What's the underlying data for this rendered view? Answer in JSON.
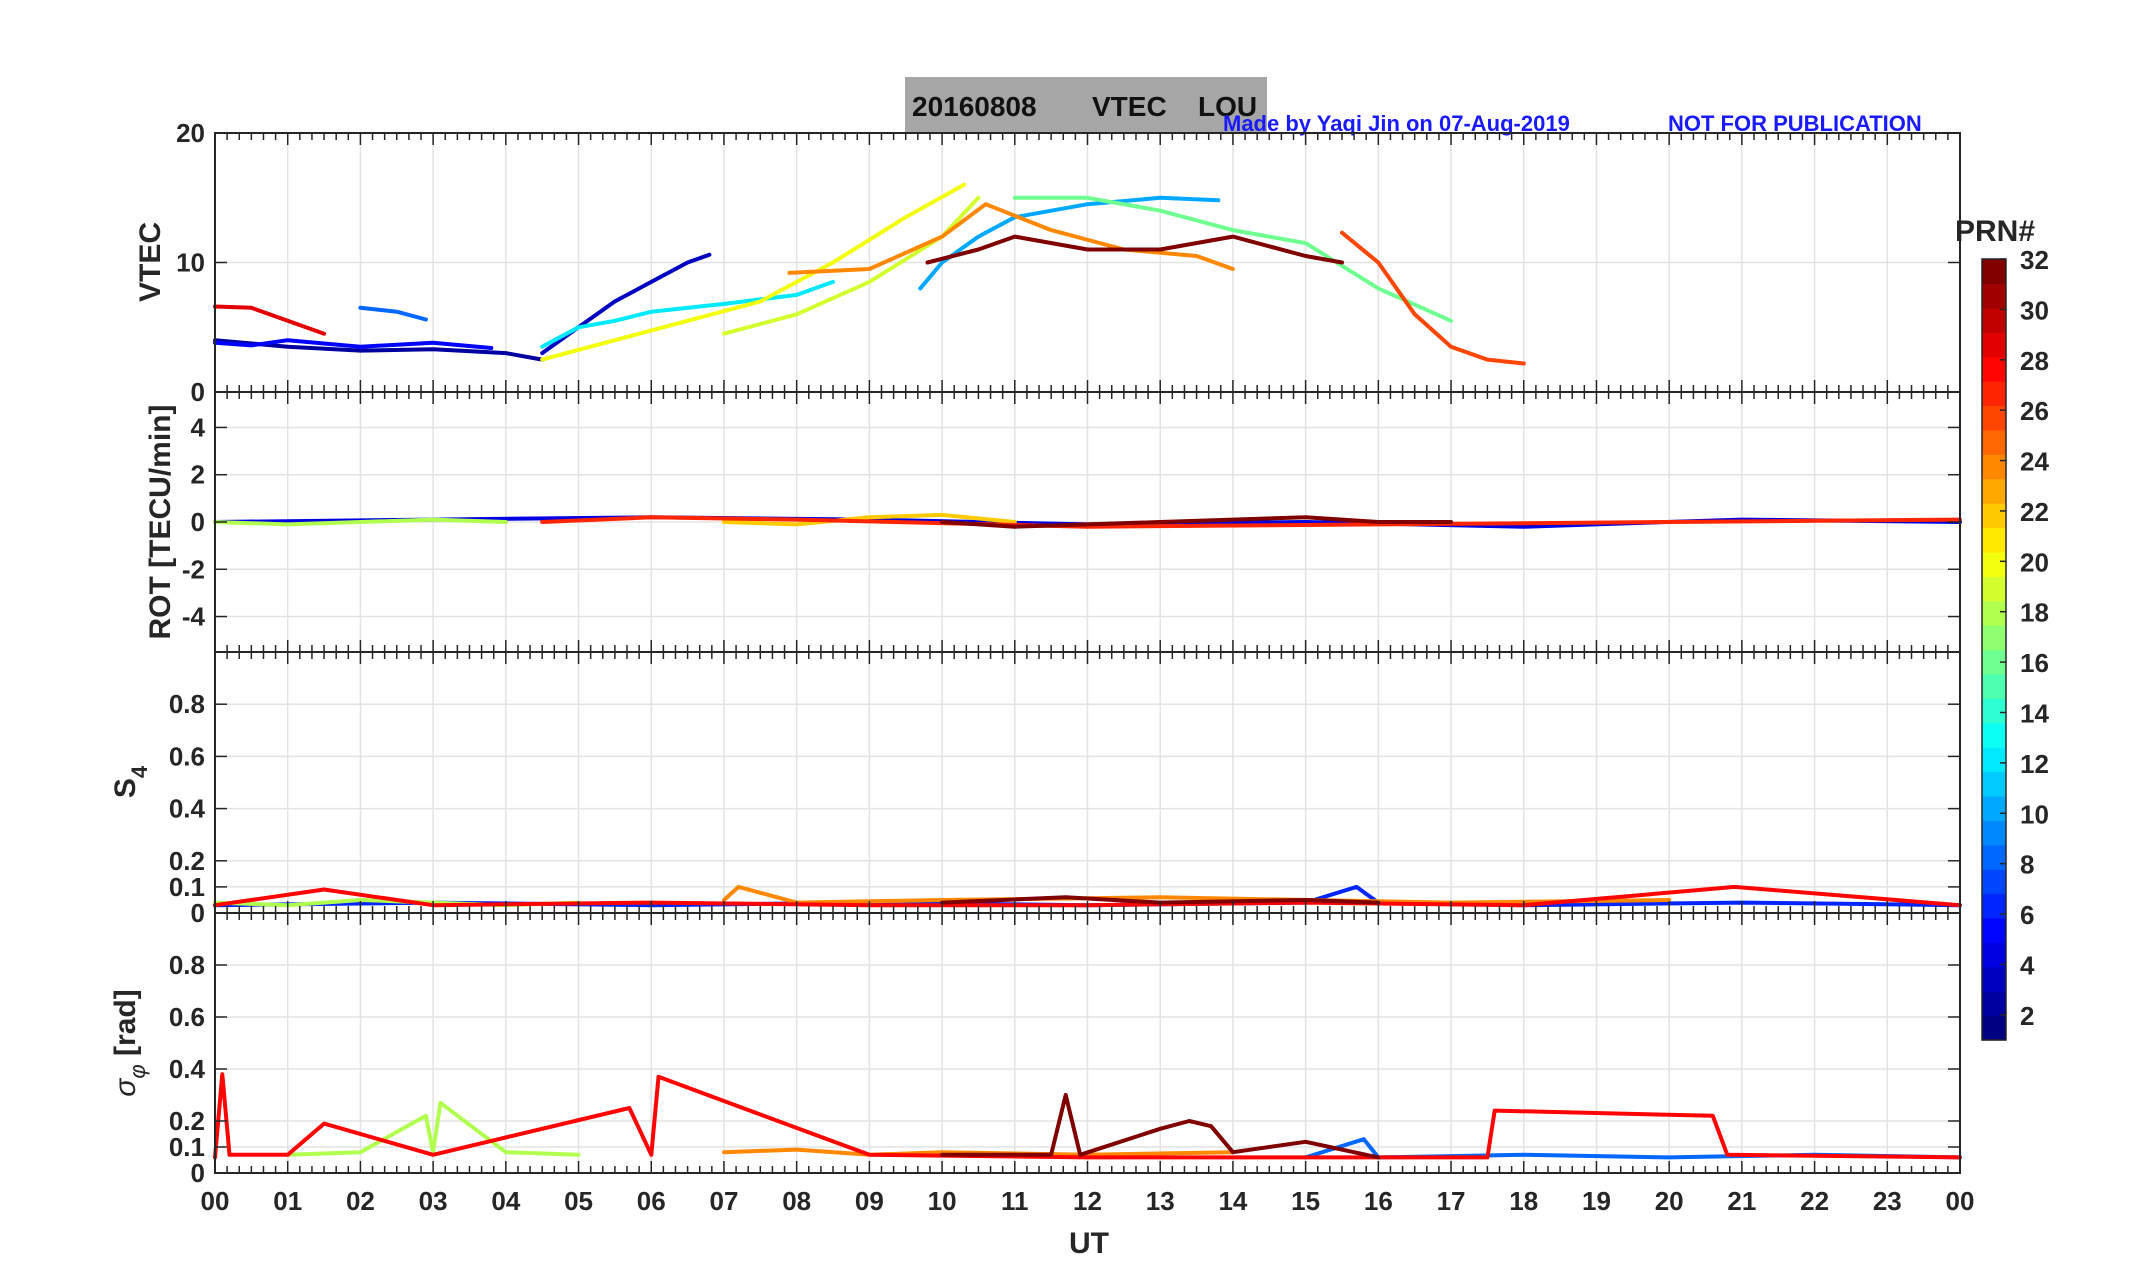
{
  "header": {
    "title_date": "20160808",
    "title_type": "VTEC",
    "title_station": "LOU",
    "credit": "Made by Yaqi Jin on 07-Aug-2019",
    "disclaimer": "NOT FOR PUBLICATION"
  },
  "colorbar": {
    "label": "PRN#",
    "range": [
      1,
      32
    ],
    "ticks": [
      "2",
      "4",
      "6",
      "8",
      "10",
      "12",
      "14",
      "16",
      "18",
      "20",
      "22",
      "24",
      "26",
      "28",
      "30",
      "32"
    ]
  },
  "chart_data": [
    {
      "id": "vtec",
      "type": "line",
      "ylabel": "VTEC",
      "ylim": [
        0,
        20
      ],
      "ytick_values": [
        0,
        10,
        20
      ],
      "ytick_labels": [
        "0",
        "10",
        "20"
      ],
      "xlim": [
        0,
        24
      ],
      "series": [
        {
          "prn": 2,
          "x": [
            0,
            1,
            2,
            3,
            4,
            4.5
          ],
          "y": [
            4,
            3.5,
            3.2,
            3.3,
            3,
            2.5
          ]
        },
        {
          "prn": 3,
          "x": [
            4.5,
            5,
            5.5,
            6,
            6.5,
            6.8
          ],
          "y": [
            3,
            5,
            7,
            8.5,
            10,
            10.6
          ]
        },
        {
          "prn": 5,
          "x": [
            0,
            0.5,
            1,
            2,
            3,
            3.8
          ],
          "y": [
            3.8,
            3.6,
            4,
            3.5,
            3.8,
            3.4
          ]
        },
        {
          "prn": 8,
          "x": [
            2,
            2.5,
            2.9
          ],
          "y": [
            6.5,
            6.2,
            5.6
          ]
        },
        {
          "prn": 10,
          "x": [
            9.7,
            10,
            10.5,
            11,
            12,
            13,
            13.8
          ],
          "y": [
            8,
            10,
            12,
            13.5,
            14.5,
            15,
            14.8
          ]
        },
        {
          "prn": 12,
          "x": [
            4.5,
            5,
            5.5,
            6,
            7,
            8,
            8.5
          ],
          "y": [
            3.5,
            5,
            5.5,
            6.2,
            6.8,
            7.5,
            8.5
          ]
        },
        {
          "prn": 16,
          "x": [
            11,
            12,
            13,
            14,
            15,
            16,
            17
          ],
          "y": [
            15,
            15,
            14,
            12.5,
            11.5,
            8,
            5.5
          ]
        },
        {
          "prn": 19,
          "x": [
            7,
            8,
            9,
            10,
            10.5
          ],
          "y": [
            4.5,
            6,
            8.5,
            12,
            15
          ]
        },
        {
          "prn": 20,
          "x": [
            4.5,
            5.5,
            6.5,
            7.5,
            8.5,
            9.5,
            10.3
          ],
          "y": [
            2.5,
            4,
            5.5,
            7,
            10,
            13.5,
            16
          ]
        },
        {
          "prn": 24,
          "x": [
            7.9,
            9,
            10,
            10.6,
            11.5,
            12.5,
            13.5,
            14
          ],
          "y": [
            9.2,
            9.5,
            12,
            14.5,
            12.5,
            11,
            10.5,
            9.5
          ]
        },
        {
          "prn": 26,
          "x": [
            15.5,
            16,
            16.5,
            17,
            17.5,
            18
          ],
          "y": [
            12.3,
            10,
            6,
            3.5,
            2.5,
            2.2
          ]
        },
        {
          "prn": 29,
          "x": [
            0,
            0.5,
            1,
            1.5
          ],
          "y": [
            6.6,
            6.5,
            5.5,
            4.5
          ]
        },
        {
          "prn": 32,
          "x": [
            9.8,
            10.5,
            11,
            12,
            13,
            14,
            15,
            15.5
          ],
          "y": [
            10,
            11,
            12,
            11,
            11,
            12,
            10.5,
            10
          ]
        }
      ]
    },
    {
      "id": "rot",
      "type": "line",
      "ylabel": "ROT [TECU/min]",
      "ylim": [
        -5.5,
        5.5
      ],
      "ytick_values": [
        -4,
        -2,
        0,
        2,
        4
      ],
      "ytick_labels": [
        "-4",
        "-2",
        "0",
        "2",
        "4"
      ],
      "xlim": [
        0,
        24
      ],
      "series": [
        {
          "prn": 4,
          "x": [
            0,
            3,
            6,
            9,
            12,
            15,
            18,
            21,
            24
          ],
          "y": [
            0,
            0.1,
            0.2,
            0.1,
            -0.1,
            0,
            -0.2,
            0.1,
            0
          ]
        },
        {
          "prn": 18,
          "x": [
            0,
            1,
            2,
            3,
            4
          ],
          "y": [
            0,
            -0.1,
            0,
            0.1,
            0
          ]
        },
        {
          "prn": 22,
          "x": [
            7,
            8,
            9,
            10,
            11
          ],
          "y": [
            0,
            -0.1,
            0.2,
            0.3,
            0
          ]
        },
        {
          "prn": 27,
          "x": [
            4.5,
            6,
            8,
            12,
            16,
            20,
            24
          ],
          "y": [
            0,
            0.2,
            0.1,
            -0.2,
            -0.1,
            0,
            0.1
          ]
        },
        {
          "prn": 32,
          "x": [
            10,
            11,
            12,
            13,
            14,
            15,
            16,
            17
          ],
          "y": [
            0,
            -0.2,
            -0.1,
            0,
            0.1,
            0.2,
            0,
            0
          ]
        }
      ]
    },
    {
      "id": "s4",
      "type": "line",
      "ylabel": "S4",
      "ylim": [
        0,
        1
      ],
      "ytick_values": [
        0,
        0.1,
        0.2,
        0.4,
        0.6,
        0.8
      ],
      "ytick_labels": [
        "0",
        "0.1",
        "0.2",
        "0.4",
        "0.6",
        "0.8"
      ],
      "xlim": [
        0,
        24
      ],
      "series": [
        {
          "prn": 6,
          "x": [
            0,
            3,
            6,
            9,
            12,
            15,
            15.7,
            16,
            18,
            21,
            24
          ],
          "y": [
            0.03,
            0.04,
            0.03,
            0.04,
            0.03,
            0.04,
            0.1,
            0.04,
            0.03,
            0.04,
            0.03
          ]
        },
        {
          "prn": 18,
          "x": [
            0,
            1,
            2,
            3,
            4,
            5
          ],
          "y": [
            0.04,
            0.03,
            0.05,
            0.04,
            0.03,
            0.04
          ]
        },
        {
          "prn": 24,
          "x": [
            7,
            7.2,
            8,
            10,
            13,
            17,
            20
          ],
          "y": [
            0.05,
            0.1,
            0.04,
            0.05,
            0.06,
            0.04,
            0.05
          ]
        },
        {
          "prn": 28,
          "x": [
            0,
            1.5,
            3,
            6,
            9,
            12,
            15,
            18,
            20.9,
            24
          ],
          "y": [
            0.03,
            0.09,
            0.03,
            0.04,
            0.03,
            0.03,
            0.04,
            0.03,
            0.1,
            0.03
          ]
        },
        {
          "prn": 32,
          "x": [
            10,
            11.7,
            13,
            15,
            16
          ],
          "y": [
            0.04,
            0.06,
            0.04,
            0.05,
            0.04
          ]
        }
      ]
    },
    {
      "id": "sigma_phi",
      "type": "line",
      "ylabel": "σφ [rad]",
      "ylim": [
        0,
        1
      ],
      "ytick_values": [
        0,
        0.1,
        0.2,
        0.4,
        0.6,
        0.8
      ],
      "ytick_labels": [
        "0",
        "0.1",
        "0.2",
        "0.4",
        "0.6",
        "0.8"
      ],
      "xlim": [
        0,
        24
      ],
      "series": [
        {
          "prn": 18,
          "x": [
            1,
            2,
            2.9,
            3,
            3.1,
            4,
            5
          ],
          "y": [
            0.07,
            0.08,
            0.22,
            0.08,
            0.27,
            0.08,
            0.07
          ]
        },
        {
          "prn": 24,
          "x": [
            7,
            8,
            9,
            10,
            12,
            14
          ],
          "y": [
            0.08,
            0.09,
            0.07,
            0.08,
            0.07,
            0.08
          ]
        },
        {
          "prn": 8,
          "x": [
            15,
            15.8,
            16,
            18,
            20,
            22,
            24
          ],
          "y": [
            0.06,
            0.13,
            0.06,
            0.07,
            0.06,
            0.07,
            0.06
          ]
        },
        {
          "prn": 28,
          "x": [
            0,
            0.1,
            0.2,
            1,
            1.5,
            3,
            5.7,
            6,
            6.1,
            9,
            12,
            17.5,
            17.6,
            20.6,
            20.8,
            24
          ],
          "y": [
            0.06,
            0.38,
            0.07,
            0.07,
            0.19,
            0.07,
            0.25,
            0.07,
            0.37,
            0.07,
            0.06,
            0.06,
            0.24,
            0.22,
            0.07,
            0.06
          ]
        },
        {
          "prn": 32,
          "x": [
            10,
            11.5,
            11.7,
            11.9,
            13,
            13.4,
            13.7,
            14,
            15,
            16
          ],
          "y": [
            0.07,
            0.07,
            0.3,
            0.07,
            0.17,
            0.2,
            0.18,
            0.08,
            0.12,
            0.06
          ]
        }
      ]
    }
  ],
  "xaxis": {
    "label": "UT",
    "tick_labels": [
      "00",
      "01",
      "02",
      "03",
      "04",
      "05",
      "06",
      "07",
      "08",
      "09",
      "10",
      "11",
      "12",
      "13",
      "14",
      "15",
      "16",
      "17",
      "18",
      "19",
      "20",
      "21",
      "22",
      "23",
      "00"
    ]
  }
}
